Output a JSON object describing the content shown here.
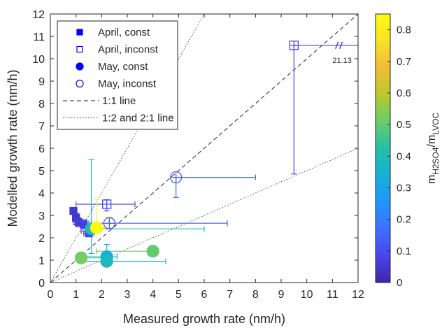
{
  "chart_data": {
    "type": "scatter",
    "xlabel": "Measured growth rate (nm/h)",
    "ylabel": "Modelled growth rate (nm/h)",
    "xlim": [
      0,
      12
    ],
    "ylim": [
      0,
      12
    ],
    "xticks": [
      "0",
      "1",
      "2",
      "3",
      "4",
      "5",
      "6",
      "7",
      "8",
      "9",
      "10",
      "11",
      "12"
    ],
    "yticks": [
      "0",
      "1",
      "2",
      "3",
      "4",
      "5",
      "6",
      "7",
      "8",
      "9",
      "10",
      "11",
      "12"
    ],
    "grid": false,
    "legend_position": "top-left",
    "legend": [
      {
        "label": "April, const",
        "marker": "square",
        "filled": true
      },
      {
        "label": "April, inconst",
        "marker": "square",
        "filled": false
      },
      {
        "label": "May, const",
        "marker": "circle",
        "filled": true
      },
      {
        "label": "May, inconst",
        "marker": "circle",
        "filled": false
      },
      {
        "label": "1:1 line",
        "line": "dashed"
      },
      {
        "label": "1:2 and 2:1 line",
        "line": "dotted"
      }
    ],
    "colorbar": {
      "label_main": "m",
      "label_sub1": "H2SO4",
      "label_sep": "/m",
      "label_sub2": "LVOC",
      "range": [
        0,
        0.85
      ],
      "ticks": [
        "0",
        "0.1",
        "0.2",
        "0.3",
        "0.4",
        "0.5",
        "0.6",
        "0.7",
        "0.8"
      ]
    },
    "break_annotation": "21.13",
    "points": [
      {
        "series": "April, const",
        "marker": "square",
        "filled": true,
        "x": 0.9,
        "y": 3.2,
        "c": 0.05,
        "xerr": [
          0.9,
          1.0
        ],
        "yerr": [
          3.2,
          3.2
        ]
      },
      {
        "series": "April, const",
        "marker": "square",
        "filled": true,
        "x": 1.0,
        "y": 2.9,
        "c": 0.05,
        "xerr": [
          0.9,
          1.1
        ],
        "yerr": [
          2.6,
          3.1
        ]
      },
      {
        "series": "April, const",
        "marker": "square",
        "filled": true,
        "x": 1.1,
        "y": 2.7,
        "c": 0.06,
        "xerr": [
          0.9,
          1.4
        ],
        "yerr": [
          2.5,
          2.9
        ]
      },
      {
        "series": "April, const",
        "marker": "square",
        "filled": true,
        "x": 1.3,
        "y": 2.6,
        "c": 0.07,
        "xerr": [
          1.0,
          1.6
        ],
        "yerr": [
          2.4,
          2.8
        ]
      },
      {
        "series": "April, const",
        "marker": "square",
        "filled": true,
        "x": 1.5,
        "y": 2.3,
        "c": 0.06,
        "xerr": [
          1.2,
          1.8
        ],
        "yerr": [
          2.1,
          2.5
        ]
      },
      {
        "series": "April, const",
        "marker": "square",
        "filled": true,
        "x": 1.5,
        "y": 2.2,
        "c": 0.08,
        "xerr": [
          1.3,
          1.7
        ],
        "yerr": [
          2.1,
          2.3
        ]
      },
      {
        "series": "April, inconst",
        "marker": "square",
        "filled": false,
        "x": 2.2,
        "y": 3.5,
        "c": 0.1,
        "xerr": [
          1.0,
          3.3
        ],
        "yerr": [
          3.2,
          3.7
        ]
      },
      {
        "series": "April, inconst",
        "marker": "square",
        "filled": false,
        "x": 9.5,
        "y": 10.6,
        "c": 0.08,
        "xerr": [
          9.5,
          12.0
        ],
        "yerr": [
          4.85,
          10.6
        ]
      },
      {
        "series": "May, const",
        "marker": "circle",
        "filled": true,
        "x": 1.2,
        "y": 1.1,
        "c": 0.52,
        "xerr": [
          1.0,
          2.3
        ],
        "yerr": [
          1.1,
          1.1
        ]
      },
      {
        "series": "May, const",
        "marker": "circle",
        "filled": true,
        "x": 2.2,
        "y": 1.15,
        "c": 0.33,
        "xerr": [
          1.4,
          2.6
        ],
        "yerr": [
          0.9,
          1.7
        ]
      },
      {
        "series": "May, const",
        "marker": "circle",
        "filled": true,
        "x": 2.2,
        "y": 0.95,
        "c": 0.38,
        "xerr": [
          1.2,
          4.5
        ],
        "yerr": [
          0.9,
          1.2
        ]
      },
      {
        "series": "May, const",
        "marker": "circle",
        "filled": true,
        "x": 4.0,
        "y": 1.4,
        "c": 0.5,
        "xerr": [
          1.8,
          4.1
        ],
        "yerr": [
          1.3,
          1.5
        ]
      },
      {
        "series": "May, const",
        "marker": "circle",
        "filled": true,
        "x": 1.6,
        "y": 2.4,
        "c": 0.4,
        "xerr": [
          1.4,
          6.0
        ],
        "yerr": [
          1.3,
          5.5
        ]
      },
      {
        "series": "May, const",
        "marker": "circle",
        "filled": true,
        "x": 1.8,
        "y": 2.45,
        "c": 0.85,
        "xerr": [
          1.5,
          2.2
        ],
        "yerr": [
          2.2,
          3.7
        ]
      },
      {
        "series": "May, inconst",
        "marker": "circle",
        "filled": false,
        "x": 2.3,
        "y": 2.65,
        "c": 0.12,
        "xerr": [
          1.5,
          6.9
        ],
        "yerr": [
          2.4,
          2.9
        ]
      },
      {
        "series": "May, inconst",
        "marker": "circle",
        "filled": false,
        "x": 4.9,
        "y": 4.7,
        "c": 0.14,
        "xerr": [
          4.9,
          8.0
        ],
        "yerr": [
          3.8,
          4.7
        ]
      }
    ]
  }
}
